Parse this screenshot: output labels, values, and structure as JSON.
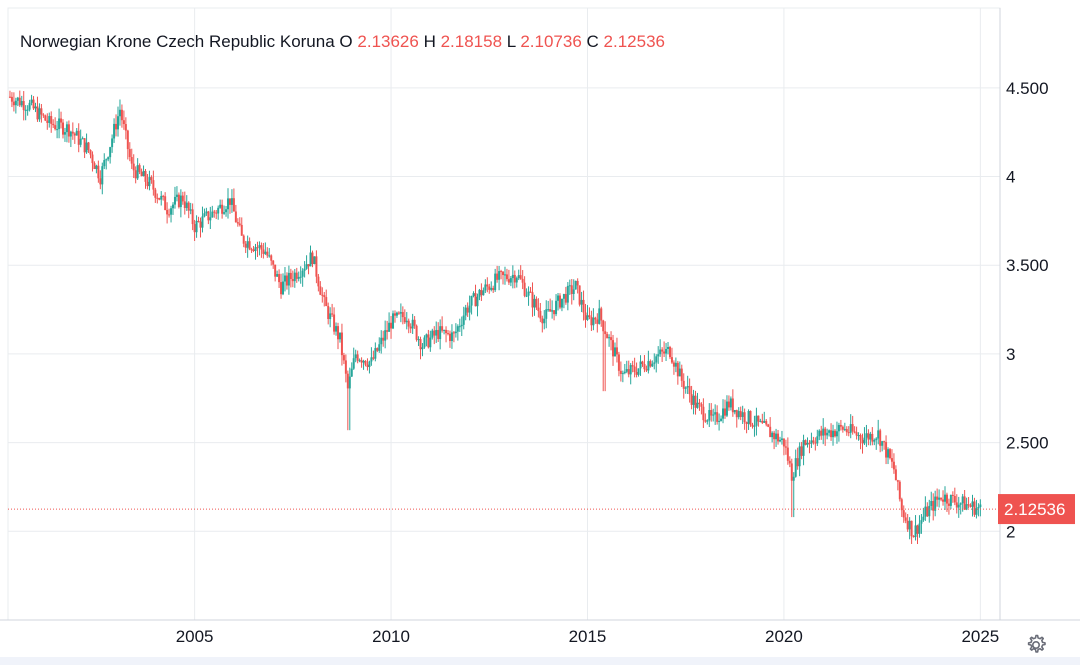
{
  "legend": {
    "title": "Norwegian Krone Czech Republic Koruna",
    "o_label": "O",
    "o_value": "2.13626",
    "h_label": "H",
    "h_value": "2.18158",
    "l_label": "L",
    "l_value": "2.10736",
    "c_label": "C",
    "c_value": "2.12536"
  },
  "colors": {
    "up": "#26a69a",
    "down": "#ef5350",
    "grid": "#e9ecef",
    "text": "#131722",
    "last_price_bg": "#ef5350"
  },
  "icons": {
    "settings": "gear-icon"
  },
  "chart_data": {
    "type": "candlestick",
    "title": "Norwegian Krone Czech Republic Koruna",
    "x_ticks": [
      "2005",
      "2010",
      "2015",
      "2020",
      "2025"
    ],
    "y_ticks": [
      "2",
      "2.500",
      "3",
      "3.500",
      "4",
      "4.500"
    ],
    "xlim": [
      2000.25,
      2025.5
    ],
    "ylim": [
      1.5,
      4.95
    ],
    "grid": true,
    "last_price": "2.12536",
    "last_price_value": 2.12536,
    "price_path": [
      [
        2000.3,
        4.45
      ],
      [
        2000.8,
        4.4
      ],
      [
        2001.3,
        4.3
      ],
      [
        2001.8,
        4.27
      ],
      [
        2002.3,
        4.15
      ],
      [
        2002.6,
        4.0
      ],
      [
        2002.9,
        4.22
      ],
      [
        2003.1,
        4.38
      ],
      [
        2003.4,
        4.05
      ],
      [
        2003.9,
        3.95
      ],
      [
        2004.3,
        3.82
      ],
      [
        2004.7,
        3.88
      ],
      [
        2005.0,
        3.72
      ],
      [
        2005.5,
        3.8
      ],
      [
        2005.9,
        3.87
      ],
      [
        2006.2,
        3.65
      ],
      [
        2006.8,
        3.58
      ],
      [
        2007.2,
        3.38
      ],
      [
        2007.7,
        3.48
      ],
      [
        2008.0,
        3.55
      ],
      [
        2008.3,
        3.28
      ],
      [
        2008.7,
        3.08
      ],
      [
        2008.9,
        2.8
      ],
      [
        2009.1,
        3.0
      ],
      [
        2009.5,
        2.95
      ],
      [
        2010.0,
        3.18
      ],
      [
        2010.4,
        3.22
      ],
      [
        2010.8,
        3.05
      ],
      [
        2011.2,
        3.12
      ],
      [
        2011.6,
        3.1
      ],
      [
        2011.9,
        3.25
      ],
      [
        2012.3,
        3.35
      ],
      [
        2012.7,
        3.42
      ],
      [
        2013.2,
        3.45
      ],
      [
        2013.5,
        3.33
      ],
      [
        2013.9,
        3.2
      ],
      [
        2014.3,
        3.3
      ],
      [
        2014.7,
        3.38
      ],
      [
        2015.0,
        3.18
      ],
      [
        2015.3,
        3.22
      ],
      [
        2015.6,
        3.05
      ],
      [
        2015.9,
        2.88
      ],
      [
        2016.3,
        2.92
      ],
      [
        2016.7,
        2.98
      ],
      [
        2017.1,
        3.02
      ],
      [
        2017.4,
        2.85
      ],
      [
        2017.8,
        2.7
      ],
      [
        2018.2,
        2.62
      ],
      [
        2018.6,
        2.72
      ],
      [
        2019.0,
        2.65
      ],
      [
        2019.5,
        2.58
      ],
      [
        2020.0,
        2.5
      ],
      [
        2020.2,
        2.32
      ],
      [
        2020.5,
        2.5
      ],
      [
        2021.0,
        2.55
      ],
      [
        2021.5,
        2.58
      ],
      [
        2022.0,
        2.53
      ],
      [
        2022.4,
        2.55
      ],
      [
        2022.8,
        2.35
      ],
      [
        2023.0,
        2.12
      ],
      [
        2023.3,
        1.99
      ],
      [
        2023.6,
        2.1
      ],
      [
        2024.0,
        2.2
      ],
      [
        2024.5,
        2.16
      ],
      [
        2025.0,
        2.125
      ]
    ]
  }
}
